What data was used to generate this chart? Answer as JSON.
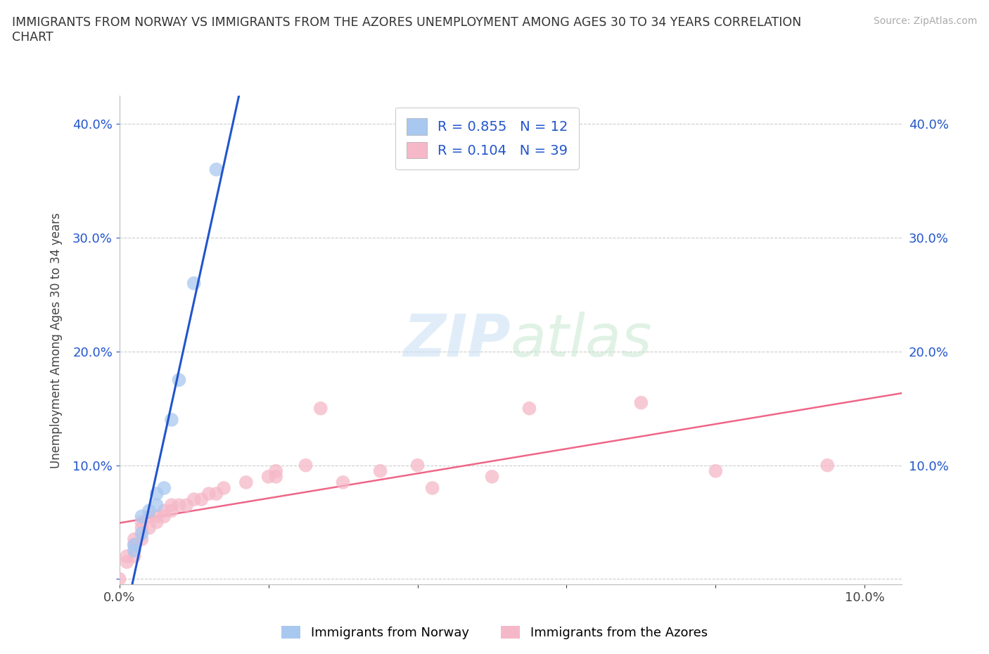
{
  "title": "IMMIGRANTS FROM NORWAY VS IMMIGRANTS FROM THE AZORES UNEMPLOYMENT AMONG AGES 30 TO 34 YEARS CORRELATION\nCHART",
  "source": "Source: ZipAtlas.com",
  "ylabel": "Unemployment Among Ages 30 to 34 years",
  "xlim": [
    0.0,
    0.105
  ],
  "ylim": [
    -0.005,
    0.425
  ],
  "norway_R": 0.855,
  "norway_N": 12,
  "azores_R": 0.104,
  "azores_N": 39,
  "norway_color": "#a8c8f0",
  "azores_color": "#f5b8c8",
  "norway_line_color": "#2255cc",
  "azores_line_color": "#ee6688",
  "background_color": "#ffffff",
  "norway_x": [
    0.002,
    0.002,
    0.003,
    0.003,
    0.004,
    0.005,
    0.005,
    0.006,
    0.007,
    0.008,
    0.01,
    0.013
  ],
  "norway_y": [
    0.025,
    0.03,
    0.04,
    0.055,
    0.06,
    0.065,
    0.075,
    0.08,
    0.14,
    0.175,
    0.26,
    0.36
  ],
  "azores_x": [
    0.0,
    0.001,
    0.001,
    0.002,
    0.002,
    0.002,
    0.003,
    0.003,
    0.003,
    0.004,
    0.004,
    0.005,
    0.005,
    0.006,
    0.006,
    0.007,
    0.007,
    0.008,
    0.009,
    0.01,
    0.011,
    0.012,
    0.013,
    0.014,
    0.017,
    0.02,
    0.021,
    0.021,
    0.025,
    0.027,
    0.03,
    0.035,
    0.04,
    0.042,
    0.05,
    0.055,
    0.07,
    0.08,
    0.095
  ],
  "azores_y": [
    0.0,
    0.015,
    0.02,
    0.02,
    0.03,
    0.035,
    0.035,
    0.045,
    0.05,
    0.045,
    0.055,
    0.05,
    0.055,
    0.055,
    0.06,
    0.06,
    0.065,
    0.065,
    0.065,
    0.07,
    0.07,
    0.075,
    0.075,
    0.08,
    0.085,
    0.09,
    0.09,
    0.095,
    0.1,
    0.15,
    0.085,
    0.095,
    0.1,
    0.08,
    0.09,
    0.15,
    0.155,
    0.095,
    0.1
  ]
}
